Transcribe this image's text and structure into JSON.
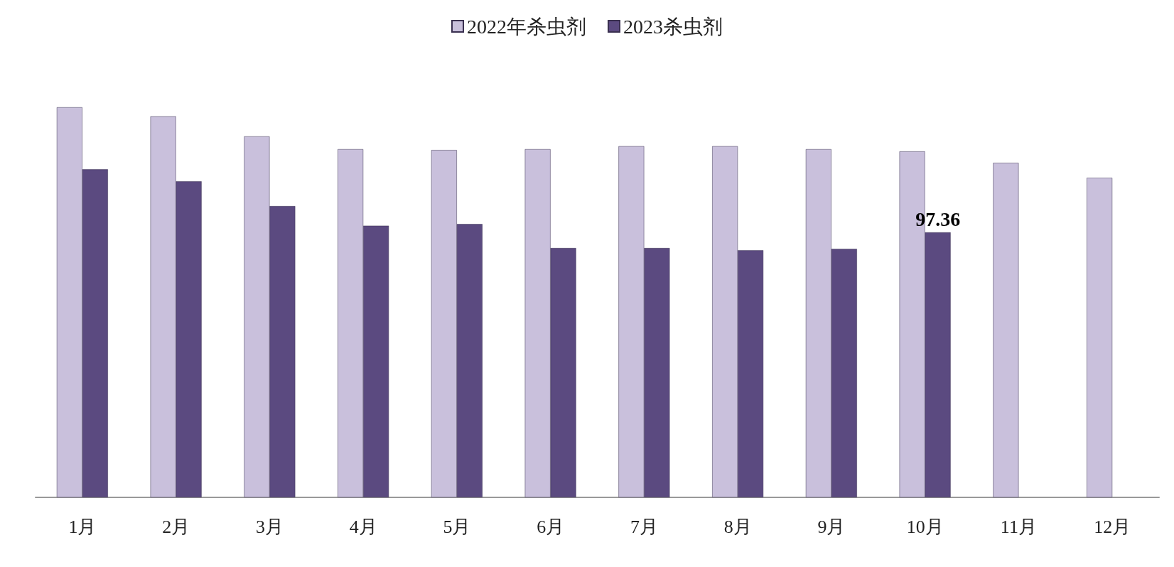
{
  "chart_data": {
    "type": "bar",
    "categories": [
      "1月",
      "2月",
      "3月",
      "4月",
      "5月",
      "6月",
      "7月",
      "8月",
      "9月",
      "10月",
      "11月",
      "12月"
    ],
    "series": [
      {
        "name": "2022年杀虫剂",
        "color": "#c9c0dc",
        "values": [
          143.3,
          140.0,
          132.6,
          127.9,
          127.6,
          127.9,
          129.0,
          129.0,
          127.9,
          127.1,
          122.9,
          117.4
        ]
      },
      {
        "name": "2023杀虫剂",
        "color": "#5b4a80",
        "values": [
          120.5,
          116.1,
          107.0,
          99.8,
          100.4,
          91.6,
          91.6,
          90.8,
          91.3,
          97.36,
          null,
          null
        ],
        "value_labels": [
          null,
          null,
          null,
          null,
          null,
          null,
          null,
          null,
          null,
          "97.36",
          null,
          null
        ]
      }
    ],
    "legend": "top"
  }
}
